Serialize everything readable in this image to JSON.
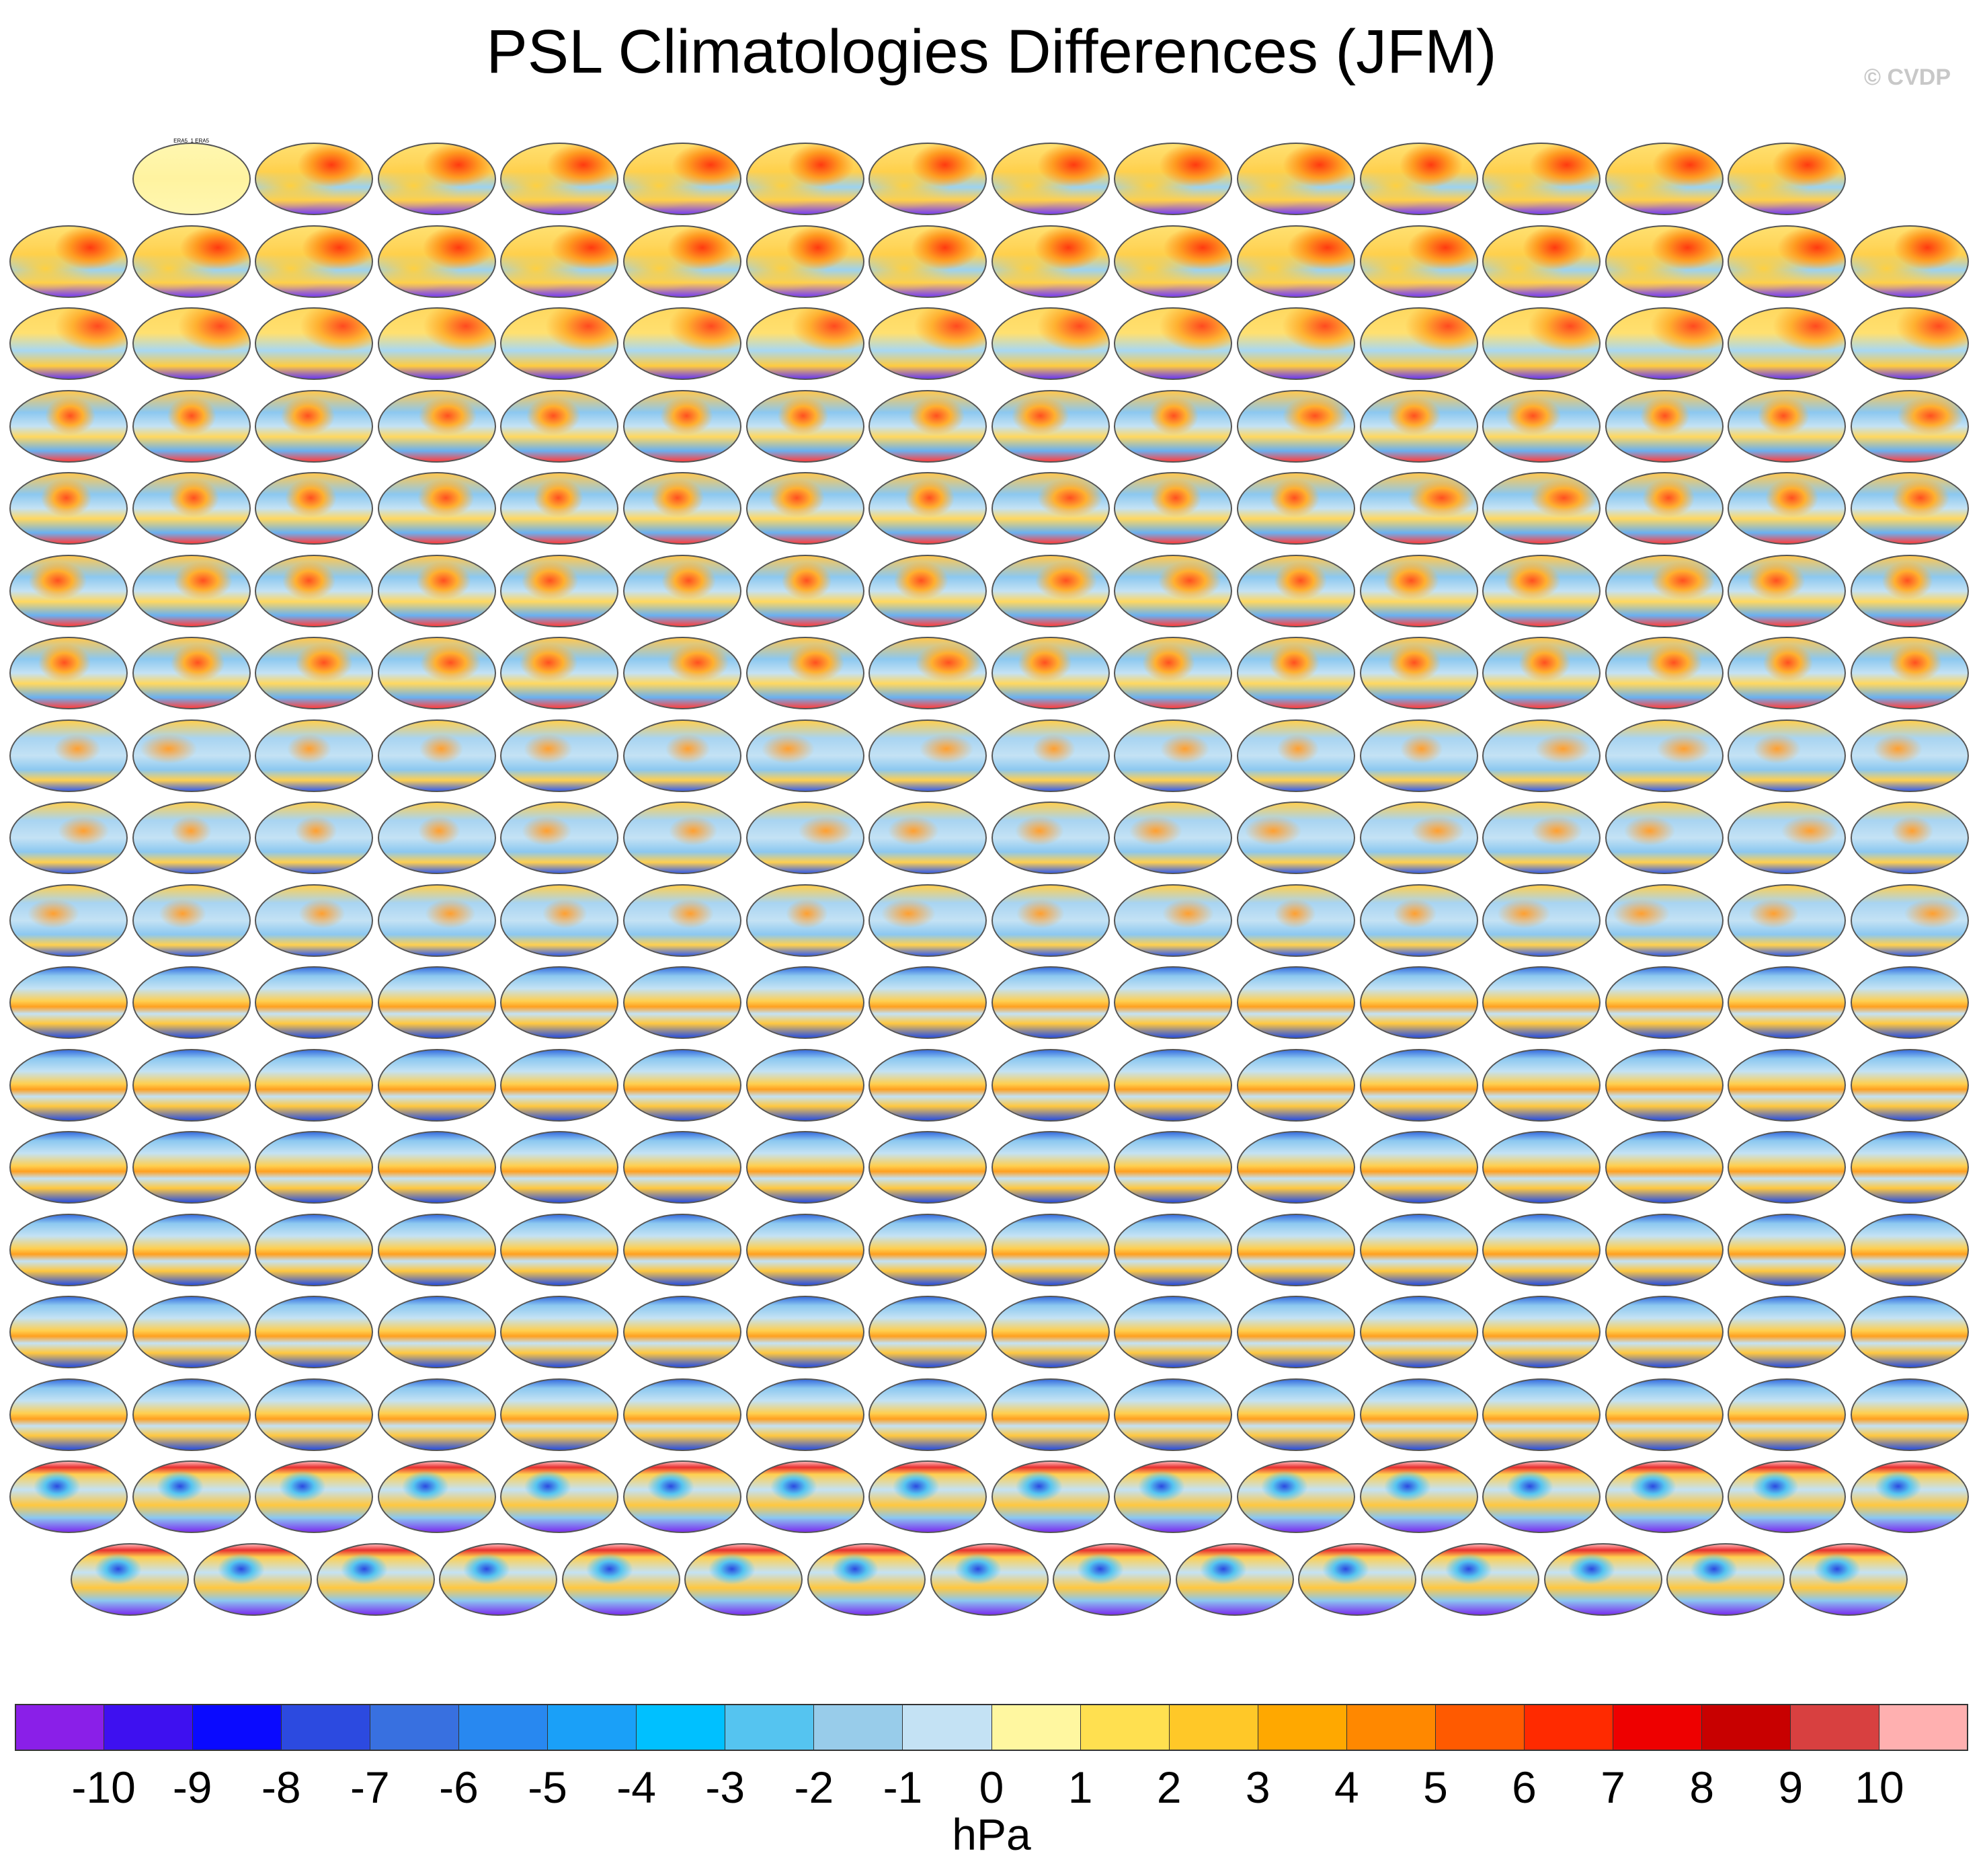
{
  "title": "PSL Climatologies Differences (JFM)",
  "credit": "© CVDP",
  "grid": {
    "rows": 18,
    "panels_per_row": [
      14,
      16,
      16,
      16,
      16,
      16,
      16,
      16,
      16,
      16,
      16,
      16,
      16,
      16,
      16,
      16,
      16,
      15
    ],
    "first_panel_label": "ERA5_1 ERA5",
    "row_themes": [
      "access-warm",
      "access-warm",
      "access-cesm",
      "cesm-mixed",
      "cesm-mixed",
      "cesm-mixed",
      "cesm-mixed",
      "cesm-cool",
      "cesm-cool",
      "cesm-cool",
      "cesm2-band",
      "cesm2-band",
      "cesm2-band",
      "cesm2-band",
      "cesm2-band",
      "cesm2-band",
      "polar",
      "polar"
    ],
    "label_colors": {
      "access-warm": "#1a6bb0",
      "access-cesm": "#1a6bb0",
      "cesm-mixed": "#2f9e9e",
      "cesm-cool": "#8a2be2",
      "cesm2-band": "#c06ad0",
      "polar": "#d8a0a0"
    }
  },
  "colorbar": {
    "units": "hPa",
    "colors": [
      "#8a1fe8",
      "#3e10f0",
      "#0a0aff",
      "#2c4ae0",
      "#3870e0",
      "#2888f0",
      "#1aa0f8",
      "#00c0ff",
      "#55c4f0",
      "#98ccea",
      "#c4e2f4",
      "#fff7a0",
      "#ffe050",
      "#ffc828",
      "#ffa800",
      "#ff8800",
      "#ff5a00",
      "#ff2a00",
      "#ee0000",
      "#c80000",
      "#d84040",
      "#ffb0b0"
    ],
    "tick_labels": [
      "-10",
      "-9",
      "-8",
      "-7",
      "-6",
      "-5",
      "-4",
      "-3",
      "-2",
      "-1",
      "0",
      "1",
      "2",
      "3",
      "4",
      "5",
      "6",
      "7",
      "8",
      "9",
      "10"
    ]
  }
}
